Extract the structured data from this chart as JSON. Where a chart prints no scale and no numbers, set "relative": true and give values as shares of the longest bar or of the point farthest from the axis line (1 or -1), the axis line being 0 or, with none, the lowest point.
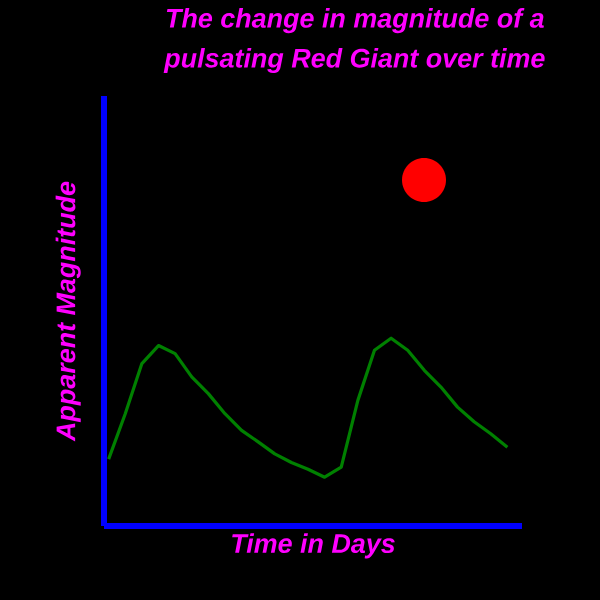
{
  "chart_data": {
    "type": "line",
    "title": "The change in magnitude of a\npulsating  Red Giant over time",
    "xlabel": "Time in Days",
    "ylabel": "Apparent Magnitude",
    "relative": true,
    "categories": [
      null,
      null,
      null,
      null,
      null,
      null,
      null,
      null,
      null,
      null,
      null,
      null,
      null,
      null,
      null,
      null,
      null,
      null,
      null,
      null,
      null,
      null,
      null,
      null,
      null
    ],
    "series": [
      {
        "color": "#008000",
        "values": [
          0.356,
          0.598,
          0.865,
          0.961,
          0.918,
          0.794,
          0.705,
          0.598,
          0.509,
          0.448,
          0.384,
          0.338,
          0.302,
          0.26,
          0.313,
          0.669,
          0.936,
          1,
          0.936,
          0.829,
          0.74,
          0.633,
          0.555,
          0.491,
          0.42
        ]
      }
    ],
    "marker": "none",
    "line_style": "solid"
  }
}
